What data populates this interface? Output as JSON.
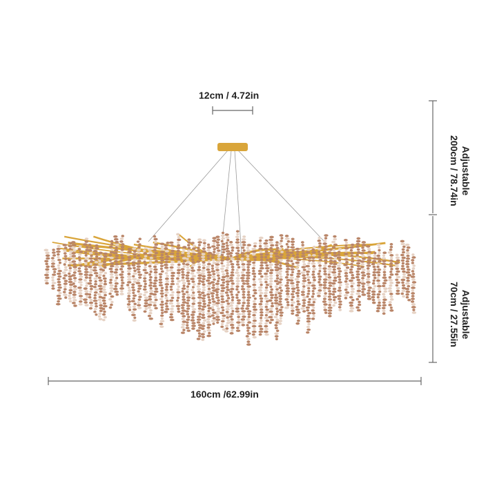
{
  "dimensions": {
    "canopy_width": "12cm / 4.72in",
    "cable_height": {
      "note": "Adjustable",
      "value": "200cm / 78.74in"
    },
    "body_height": {
      "note": "Adjustable",
      "value": "70cm / 27.55in"
    },
    "overall_width": "160cm /62.99in"
  },
  "colors": {
    "gold": "#d9a53a",
    "crystal": "#b98568",
    "dim_line": "#666666"
  }
}
